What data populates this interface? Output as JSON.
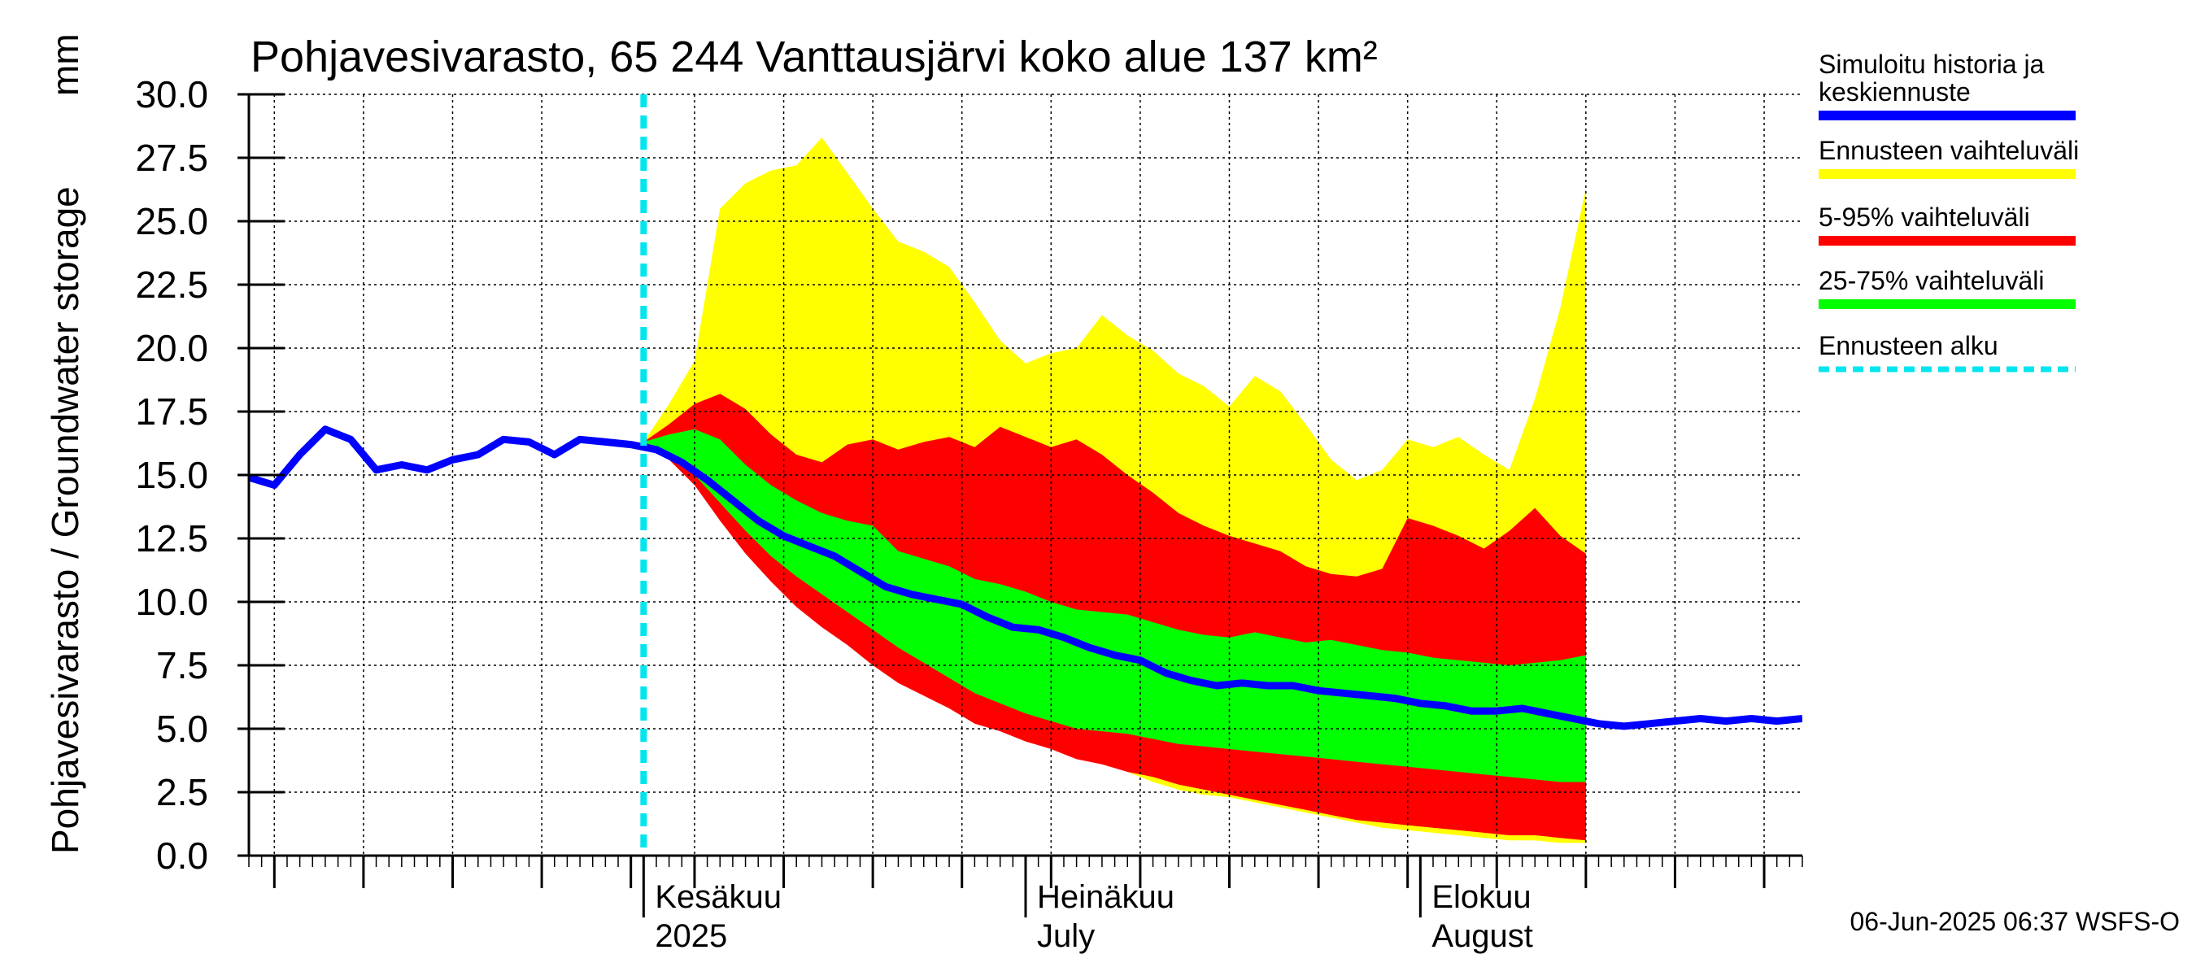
{
  "chart_data": {
    "type": "area",
    "title": "Pohjavesivarasto, 65 244 Vanttausjärvi koko alue 137 km²",
    "ylabel": "Pohjavesivarasto / Groundwater storage",
    "yunit": "mm",
    "ylim": [
      0,
      30
    ],
    "yticks": [
      "0.0",
      "2.5",
      "5.0",
      "7.5",
      "10.0",
      "12.5",
      "15.0",
      "17.5",
      "20.0",
      "22.5",
      "25.0",
      "27.5",
      "30.0"
    ],
    "xlim": [
      "2025-05-01",
      "2025-08-31"
    ],
    "x_month_labels": [
      {
        "date": "2025-06-01",
        "line1": "Kesäkuu",
        "line2": "2025"
      },
      {
        "date": "2025-07-01",
        "line1": "Heinäkuu",
        "line2": "July"
      },
      {
        "date": "2025-08-01",
        "line1": "Elokuu",
        "line2": "August"
      }
    ],
    "grid": true,
    "forecast_start": "2025-06-01",
    "x": [
      "2025-05-01",
      "2025-05-03",
      "2025-05-05",
      "2025-05-07",
      "2025-05-09",
      "2025-05-11",
      "2025-05-13",
      "2025-05-15",
      "2025-05-17",
      "2025-05-19",
      "2025-05-21",
      "2025-05-23",
      "2025-05-25",
      "2025-05-27",
      "2025-05-29",
      "2025-05-31",
      "2025-06-02",
      "2025-06-04",
      "2025-06-06",
      "2025-06-08",
      "2025-06-10",
      "2025-06-12",
      "2025-06-14",
      "2025-06-16",
      "2025-06-18",
      "2025-06-20",
      "2025-06-22",
      "2025-06-24",
      "2025-06-26",
      "2025-06-28",
      "2025-06-30",
      "2025-07-02",
      "2025-07-04",
      "2025-07-06",
      "2025-07-08",
      "2025-07-10",
      "2025-07-12",
      "2025-07-14",
      "2025-07-16",
      "2025-07-18",
      "2025-07-20",
      "2025-07-22",
      "2025-07-24",
      "2025-07-26",
      "2025-07-28",
      "2025-07-30",
      "2025-08-01",
      "2025-08-03",
      "2025-08-05",
      "2025-08-07",
      "2025-08-09",
      "2025-08-11",
      "2025-08-13",
      "2025-08-15",
      "2025-08-17",
      "2025-08-19",
      "2025-08-21",
      "2025-08-23",
      "2025-08-25",
      "2025-08-27",
      "2025-08-29",
      "2025-08-31"
    ],
    "series": [
      {
        "name": "Simuloitu historia ja keskiennuste",
        "color": "#0000ff",
        "values": [
          14.9,
          14.6,
          15.8,
          16.8,
          16.4,
          15.2,
          15.4,
          15.2,
          15.6,
          15.8,
          16.4,
          16.3,
          15.8,
          16.4,
          16.3,
          16.2,
          16.0,
          15.5,
          14.8,
          14.0,
          13.2,
          12.6,
          12.2,
          11.8,
          11.2,
          10.6,
          10.3,
          10.1,
          9.9,
          9.4,
          9.0,
          8.9,
          8.6,
          8.2,
          7.9,
          7.7,
          7.2,
          6.9,
          6.7,
          6.8,
          6.7,
          6.7,
          6.5,
          6.4,
          6.3,
          6.2,
          6.0,
          5.9,
          5.7,
          5.7,
          5.8,
          5.6,
          5.4,
          5.2,
          5.1,
          5.2,
          5.3,
          5.4,
          5.3,
          5.4,
          5.3,
          5.4
        ]
      },
      {
        "name": "Ennusteen vaihteluväli",
        "color": "#ffff00",
        "x_start": "2025-06-01",
        "upper": [
          16.3,
          17.8,
          19.5,
          25.5,
          26.5,
          27.0,
          27.2,
          28.3,
          26.9,
          25.5,
          24.2,
          23.8,
          23.2,
          21.8,
          20.3,
          19.4,
          19.8,
          20.0,
          21.3,
          20.5,
          19.9,
          19.0,
          18.5,
          17.7,
          18.9,
          18.3,
          17.0,
          15.6,
          14.8,
          15.2,
          16.4,
          16.1,
          16.5,
          15.8,
          15.2,
          18.0,
          21.6,
          26.3
        ],
        "lower": [
          16.3,
          15.8,
          14.8,
          13.6,
          12.4,
          11.2,
          10.2,
          9.4,
          8.6,
          7.9,
          7.2,
          6.8,
          6.3,
          5.7,
          5.2,
          4.8,
          4.5,
          4.1,
          3.7,
          3.3,
          2.9,
          2.6,
          2.4,
          2.3,
          2.1,
          1.9,
          1.7,
          1.5,
          1.3,
          1.1,
          1.0,
          0.9,
          0.8,
          0.7,
          0.6,
          0.6,
          0.5,
          0.5
        ]
      },
      {
        "name": "5-95% vaihteluväli",
        "color": "#ff0000",
        "x_start": "2025-06-01",
        "upper": [
          16.3,
          17.0,
          17.8,
          18.2,
          17.6,
          16.6,
          15.8,
          15.5,
          16.2,
          16.4,
          16.0,
          16.3,
          16.5,
          16.1,
          16.9,
          16.5,
          16.1,
          16.4,
          15.8,
          15.0,
          14.3,
          13.5,
          13.0,
          12.6,
          12.3,
          12.0,
          11.4,
          11.1,
          11.0,
          11.3,
          13.3,
          13.0,
          12.6,
          12.1,
          12.8,
          13.7,
          12.6,
          11.9
        ],
        "lower": [
          16.3,
          15.6,
          14.6,
          13.2,
          11.9,
          10.8,
          9.8,
          9.0,
          8.3,
          7.5,
          6.8,
          6.3,
          5.8,
          5.2,
          4.9,
          4.5,
          4.2,
          3.8,
          3.6,
          3.3,
          3.1,
          2.8,
          2.6,
          2.4,
          2.2,
          2.0,
          1.8,
          1.6,
          1.4,
          1.3,
          1.2,
          1.1,
          1.0,
          0.9,
          0.8,
          0.8,
          0.7,
          0.6
        ]
      },
      {
        "name": "25-75% vaihteluväli",
        "color": "#00ff00",
        "x_start": "2025-06-01",
        "upper": [
          16.3,
          16.6,
          16.8,
          16.4,
          15.4,
          14.6,
          14.0,
          13.5,
          13.2,
          13.0,
          12.0,
          11.7,
          11.4,
          10.9,
          10.7,
          10.4,
          10.0,
          9.7,
          9.6,
          9.5,
          9.2,
          8.9,
          8.7,
          8.6,
          8.8,
          8.6,
          8.4,
          8.5,
          8.3,
          8.1,
          8.0,
          7.8,
          7.7,
          7.6,
          7.5,
          7.6,
          7.7,
          7.9
        ],
        "lower": [
          16.3,
          15.9,
          15.0,
          13.9,
          12.8,
          11.8,
          11.0,
          10.3,
          9.6,
          8.9,
          8.2,
          7.6,
          7.0,
          6.4,
          6.0,
          5.6,
          5.3,
          5.0,
          4.9,
          4.8,
          4.6,
          4.4,
          4.3,
          4.2,
          4.1,
          4.0,
          3.9,
          3.8,
          3.7,
          3.6,
          3.5,
          3.4,
          3.3,
          3.2,
          3.1,
          3.0,
          2.9,
          2.9
        ]
      },
      {
        "name": "Ennusteen alku",
        "color": "#00e5ee"
      }
    ]
  },
  "legend": [
    {
      "line1": "Simuloitu historia ja",
      "line2": "keskiennuste",
      "color": "#0000ff",
      "style": "solid"
    },
    {
      "line1": "Ennusteen vaihteluväli",
      "line2": "",
      "color": "#ffff00",
      "style": "solid"
    },
    {
      "line1": "5-95% vaihteluväli",
      "line2": "",
      "color": "#ff0000",
      "style": "solid"
    },
    {
      "line1": "25-75% vaihteluväli",
      "line2": "",
      "color": "#00ff00",
      "style": "solid"
    },
    {
      "line1": "Ennusteen alku",
      "line2": "",
      "color": "#00e5ee",
      "style": "dashed"
    }
  ],
  "footer": "06-Jun-2025 06:37 WSFS-O"
}
